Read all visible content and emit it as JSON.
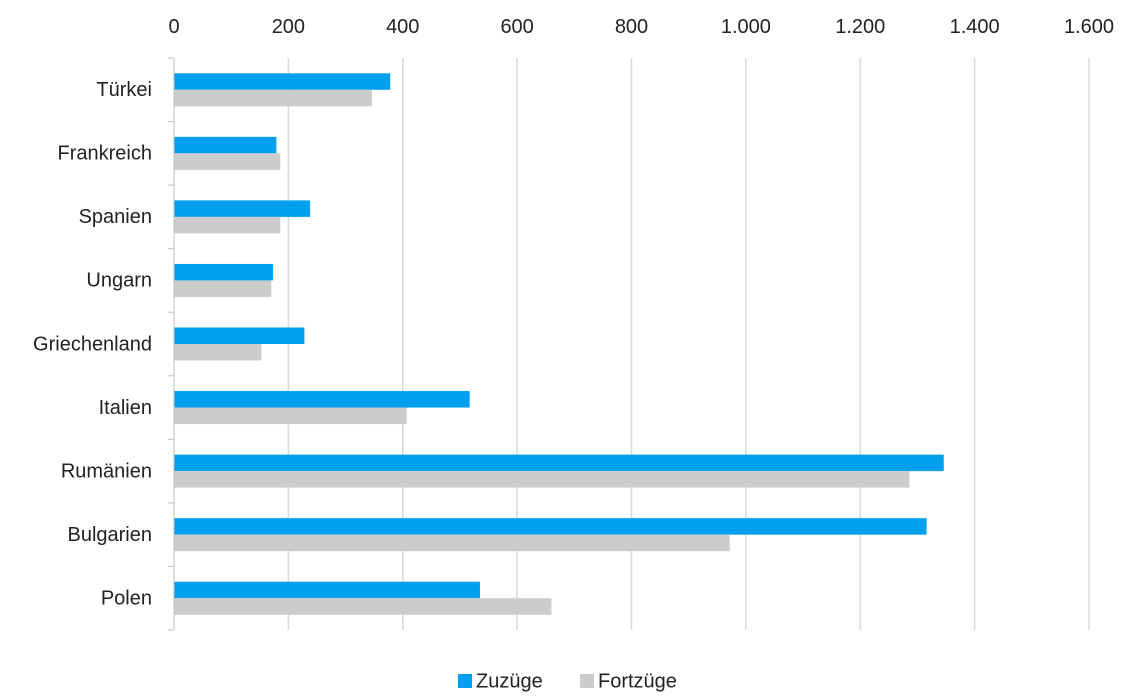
{
  "chart_data": {
    "type": "bar",
    "orientation": "horizontal",
    "categories": [
      "Türkei",
      "Frankreich",
      "Spanien",
      "Ungarn",
      "Griechenland",
      "Italien",
      "Rumänien",
      "Bulgarien",
      "Polen"
    ],
    "series": [
      {
        "name": "Zuzüge",
        "color": "#00a0ee",
        "values": [
          378,
          179,
          238,
          173,
          228,
          517,
          1346,
          1316,
          535
        ]
      },
      {
        "name": "Fortzüge",
        "color": "#cccccc",
        "values": [
          346,
          186,
          186,
          170,
          153,
          407,
          1286,
          972,
          660
        ]
      }
    ],
    "x_ticks": [
      "0",
      "200",
      "400",
      "600",
      "800",
      "1.000",
      "1.200",
      "1.400",
      "1.600"
    ],
    "xlim": [
      0,
      1600
    ],
    "x_axis_position": "top",
    "grid": true,
    "legend_position": "bottom"
  }
}
